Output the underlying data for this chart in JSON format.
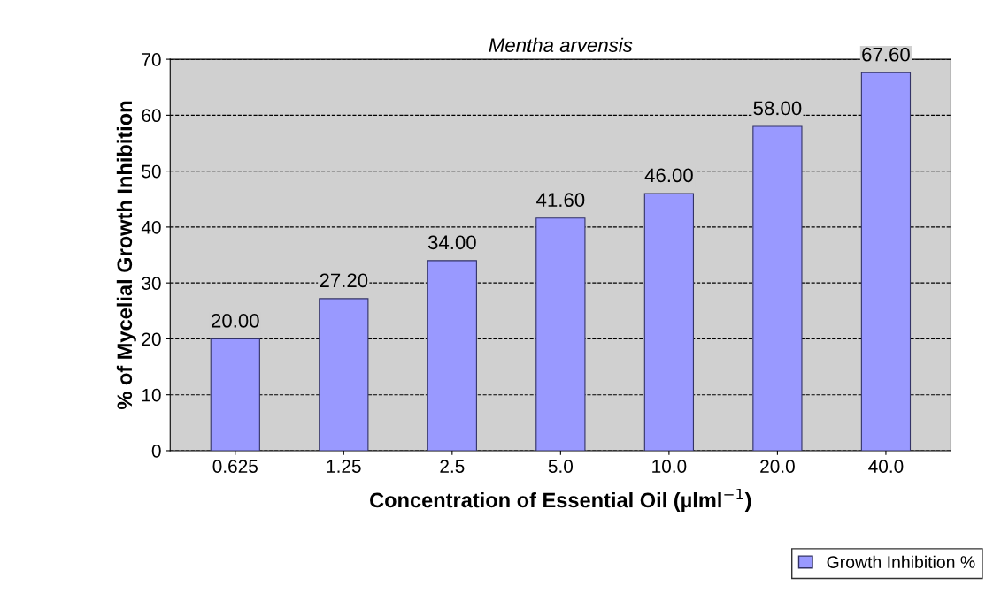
{
  "chart_data": {
    "type": "bar",
    "title": "Mentha arvensis",
    "xlabel": "Concentration of Essential Oil (µlml$^{−1}$)",
    "ylabel": "% of Mycelial Growth Inhibition",
    "categories": [
      "0.625",
      "1.25",
      "2.5",
      "5.0",
      "10.0",
      "20.0",
      "40.0"
    ],
    "series": [
      {
        "name": "Growth Inhibition %",
        "color": "#9999ff",
        "values": [
          20.0,
          27.2,
          34.0,
          41.6,
          46.0,
          58.0,
          67.6
        ],
        "value_labels": [
          "20.00",
          "27.20",
          "34.00",
          "41.60",
          "46.00",
          "58.00",
          "67.60"
        ]
      }
    ],
    "ylim": [
      0,
      70
    ],
    "yticks": [
      0,
      10,
      20,
      30,
      40,
      50,
      60,
      70
    ],
    "grid": "y",
    "legend": "bottom right"
  }
}
